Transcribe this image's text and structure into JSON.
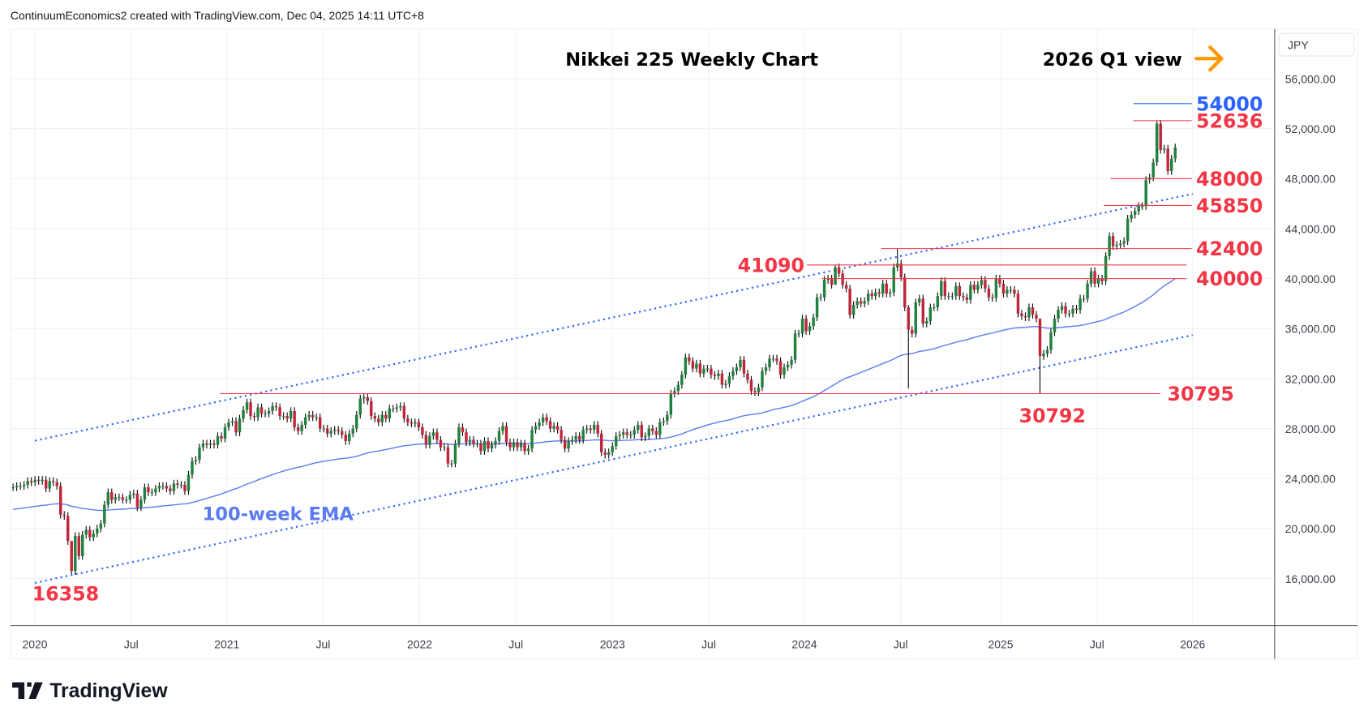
{
  "header": "ContinuumEconomics2 created with TradingView.com, Dec 04, 2025 14:11 UTC+8",
  "footer_logo": "TradingView",
  "currency": "JPY",
  "colors": {
    "up": "#22803f",
    "down": "#c0263a",
    "level": "#f23645",
    "target": "#2962ff",
    "ema": "#5b7cf0",
    "trend": "#2962ff",
    "arrow": "#ff9800"
  },
  "chart_data": {
    "type": "candlestick",
    "title": "Nikkei 225 Weekly Chart",
    "view_note": "2026 Q1 view",
    "ylim": [
      12000,
      58000
    ],
    "y_ticks": [
      "56,000.00",
      "52,000.00",
      "48,000.00",
      "44,000.00",
      "40,000.00",
      "36,000.00",
      "32,000.00",
      "28,000.00",
      "24,000.00",
      "20,000.00",
      "16,000.00"
    ],
    "y_tick_values": [
      56000,
      52000,
      48000,
      44000,
      40000,
      36000,
      32000,
      28000,
      24000,
      20000,
      16000
    ],
    "x_ticks": [
      {
        "label": "2020",
        "date": "2020-01"
      },
      {
        "label": "Jul",
        "date": "2020-07"
      },
      {
        "label": "2021",
        "date": "2021-01"
      },
      {
        "label": "Jul",
        "date": "2021-07"
      },
      {
        "label": "2022",
        "date": "2022-01"
      },
      {
        "label": "Jul",
        "date": "2022-07"
      },
      {
        "label": "2023",
        "date": "2023-01"
      },
      {
        "label": "Jul",
        "date": "2023-07"
      },
      {
        "label": "2024",
        "date": "2024-01"
      },
      {
        "label": "Jul",
        "date": "2024-07"
      },
      {
        "label": "2025",
        "date": "2025-01"
      },
      {
        "label": "Jul",
        "date": "2025-07"
      },
      {
        "label": "2026",
        "date": "2026-01"
      }
    ],
    "weekly_close_thousands_note": "close, or [close, low, high]",
    "weekly": [
      23.3,
      23.4,
      23.4,
      23.5,
      23.8,
      23.7,
      23.9,
      23.8,
      23.9,
      23.2,
      23.8,
      23.7,
      23.4,
      21.1,
      21.0,
      19.0,
      [
        16.6,
        16.36,
        19.0
      ],
      19.4,
      17.8,
      19.5,
      19.9,
      19.3,
      19.6,
      20.0,
      20.4,
      21.9,
      22.9,
      22.3,
      22.5,
      22.5,
      22.3,
      22.3,
      22.7,
      22.8,
      21.7,
      22.3,
      23.3,
      22.9,
      22.9,
      23.2,
      23.4,
      23.4,
      23.2,
      23.0,
      23.6,
      23.5,
      23.5,
      23.0,
      24.3,
      25.4,
      25.5,
      26.5,
      26.8,
      26.7,
      26.8,
      26.7,
      27.4,
      27.2,
      28.1,
      28.5,
      28.6,
      27.7,
      28.8,
      29.5,
      30.1,
      29.0,
      28.9,
      29.7,
      29.2,
      29.2,
      29.4,
      29.8,
      29.7,
      29.0,
      29.0,
      28.8,
      29.4,
      28.1,
      27.8,
      28.3,
      28.9,
      29.1,
      28.9,
      28.9,
      28.0,
      28.0,
      27.6,
      27.8,
      27.9,
      27.8,
      27.5,
      27.0,
      27.6,
      28.0,
      29.1,
      30.4,
      [
        30.5,
        30.0,
        30.8
      ],
      30.2,
      29.0,
      28.8,
      28.5,
      29.1,
      28.8,
      29.6,
      29.6,
      29.7,
      29.8,
      28.8,
      28.5,
      28.4,
      28.5,
      28.1,
      27.5,
      26.7,
      27.4,
      27.7,
      27.1,
      26.5,
      26.5,
      25.2,
      25.2,
      26.8,
      28.1,
      27.7,
      26.9,
      27.1,
      26.8,
      26.8,
      26.2,
      27.0,
      26.4,
      26.7,
      27.0,
      27.8,
      28.2,
      26.9,
      26.5,
      26.9,
      26.5,
      26.8,
      26.2,
      26.4,
      27.9,
      28.2,
      28.5,
      28.9,
      28.6,
      28.0,
      28.2,
      27.9,
      27.1,
      26.4,
      27.0,
      27.1,
      27.4,
      27.1,
      27.9,
      28.0,
      27.9,
      28.3,
      27.6,
      26.1,
      25.9,
      26.1,
      26.6,
      27.4,
      27.5,
      27.7,
      27.5,
      27.5,
      27.9,
      28.3,
      27.3,
      27.4,
      28.0,
      27.8,
      27.5,
      28.5,
      28.6,
      29.1,
      30.8,
      31.0,
      31.5,
      32.3,
      33.7,
      33.4,
      32.8,
      33.2,
      32.4,
      32.8,
      32.8,
      32.3,
      32.2,
      32.4,
      31.5,
      31.6,
      32.2,
      32.6,
      32.9,
      33.5,
      32.4,
      31.9,
      31.0,
      30.9,
      31.3,
      32.6,
      32.9,
      33.6,
      33.6,
      33.4,
      32.3,
      32.9,
      33.1,
      33.5,
      35.6,
      35.6,
      36.8,
      35.8,
      36.2,
      36.9,
      38.5,
      38.5,
      39.9,
      40.0,
      39.5,
      [
        40.9,
        39.6,
        41.09
      ],
      40.4,
      39.5,
      39.2,
      37.1,
      37.9,
      38.2,
      38.0,
      38.2,
      38.8,
      38.6,
      38.9,
      38.8,
      39.6,
      38.8,
      38.9,
      40.9,
      [
        41.2,
        40.6,
        42.4
      ],
      40.1,
      37.7,
      [
        35.9,
        31.2,
        37.9
      ],
      35.6,
      38.1,
      38.4,
      36.4,
      36.6,
      37.7,
      37.7,
      38.6,
      39.8,
      38.6,
      38.6,
      38.6,
      39.4,
      38.6,
      38.5,
      38.3,
      39.5,
      39.1,
      39.5,
      39.9,
      39.2,
      38.5,
      38.45,
      40.0,
      39.6,
      38.8,
      39.1,
      39.1,
      38.8,
      37.2,
      37.0,
      36.9,
      37.7,
      37.1,
      36.8,
      [
        33.8,
        30.79,
        35.0
      ],
      34.0,
      34.3,
      35.7,
      36.8,
      37.5,
      37.8,
      37.2,
      37.2,
      37.6,
      37.5,
      38.4,
      38.4,
      39.6,
      40.6,
      39.6,
      40.0,
      39.8,
      41.8,
      43.4,
      42.6,
      42.7,
      42.8,
      43.0,
      44.8,
      45.1,
      45.4,
      45.8,
      45.8,
      47.9,
      48.1,
      49.3,
      [
        52.4,
        49.0,
        52.636
      ],
      50.3,
      50.4,
      48.6,
      49.6,
      50.5
    ],
    "indicator": {
      "name": "100-week EMA",
      "label": "100-week EMA"
    },
    "levels": [
      {
        "value": 54000,
        "label": "54000",
        "kind": "target"
      },
      {
        "value": 52636,
        "label": "52636",
        "kind": "resistance"
      },
      {
        "value": 48000,
        "label": "48000",
        "kind": "support"
      },
      {
        "value": 45850,
        "label": "45850",
        "kind": "support"
      },
      {
        "value": 42400,
        "label": "42400",
        "kind": "support"
      },
      {
        "value": 41090,
        "label": "41090",
        "kind": "support"
      },
      {
        "value": 40000,
        "label": "40000",
        "kind": "support"
      },
      {
        "value": 30795,
        "label": "30795",
        "kind": "support"
      },
      {
        "value": 30792,
        "label": "30792",
        "kind": "low"
      },
      {
        "value": 16358,
        "label": "16358",
        "kind": "low"
      }
    ],
    "channel": {
      "style": "dotted",
      "lines": [
        "upper",
        "lower"
      ]
    },
    "grid": true
  }
}
